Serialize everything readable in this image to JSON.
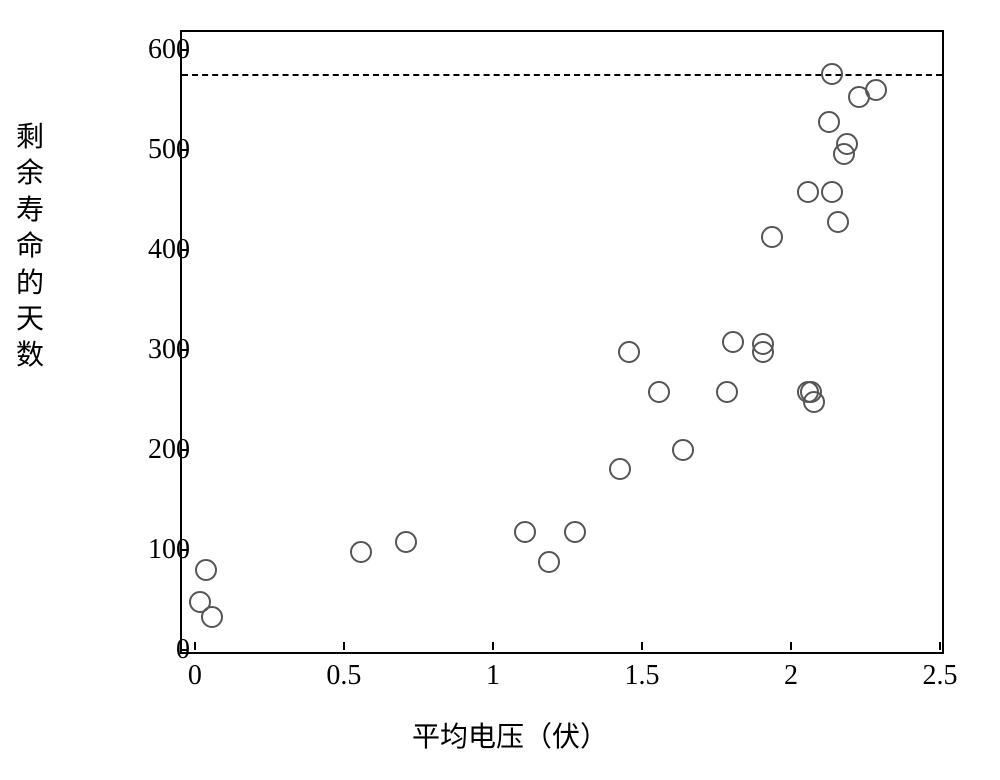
{
  "chart": {
    "type": "scatter",
    "xlabel": "平均电压（伏）",
    "ylabel": "剩余寿命的天数",
    "label_fontsize": 28,
    "xlim": [
      -0.05,
      2.5
    ],
    "ylim": [
      0,
      620
    ],
    "xtick_positions": [
      0,
      0.5,
      1,
      1.5,
      2,
      2.5
    ],
    "xtick_labels": [
      "0",
      "0.5",
      "1",
      "1.5",
      "2",
      "2.5"
    ],
    "ytick_positions": [
      0,
      100,
      200,
      300,
      400,
      500,
      600
    ],
    "ytick_labels": [
      "0",
      "100",
      "200",
      "300",
      "400",
      "500",
      "600"
    ],
    "tick_fontsize": 28,
    "background_color": "#ffffff",
    "border_color": "#000000",
    "text_color": "#000000",
    "marker_style": "circle-open",
    "marker_size": 18,
    "marker_edge_color": "#555555",
    "marker_edge_width": 2.2,
    "reference_line": {
      "y": 578,
      "style": "dashed",
      "width": 2,
      "color": "#000000",
      "dash_pattern": "8 6"
    },
    "points": [
      {
        "x": 0.01,
        "y": 50
      },
      {
        "x": 0.03,
        "y": 82
      },
      {
        "x": 0.05,
        "y": 35
      },
      {
        "x": 0.55,
        "y": 100
      },
      {
        "x": 0.7,
        "y": 110
      },
      {
        "x": 1.1,
        "y": 120
      },
      {
        "x": 1.18,
        "y": 90
      },
      {
        "x": 1.27,
        "y": 120
      },
      {
        "x": 1.42,
        "y": 183
      },
      {
        "x": 1.45,
        "y": 300
      },
      {
        "x": 1.55,
        "y": 260
      },
      {
        "x": 1.63,
        "y": 202
      },
      {
        "x": 1.78,
        "y": 260
      },
      {
        "x": 1.8,
        "y": 310
      },
      {
        "x": 1.9,
        "y": 308
      },
      {
        "x": 1.9,
        "y": 300
      },
      {
        "x": 1.93,
        "y": 415
      },
      {
        "x": 2.05,
        "y": 260
      },
      {
        "x": 2.06,
        "y": 260
      },
      {
        "x": 2.05,
        "y": 460
      },
      {
        "x": 2.07,
        "y": 250
      },
      {
        "x": 2.13,
        "y": 460
      },
      {
        "x": 2.12,
        "y": 530
      },
      {
        "x": 2.13,
        "y": 578
      },
      {
        "x": 2.15,
        "y": 430
      },
      {
        "x": 2.17,
        "y": 498
      },
      {
        "x": 2.18,
        "y": 508
      },
      {
        "x": 2.22,
        "y": 555
      },
      {
        "x": 2.28,
        "y": 562
      }
    ]
  }
}
